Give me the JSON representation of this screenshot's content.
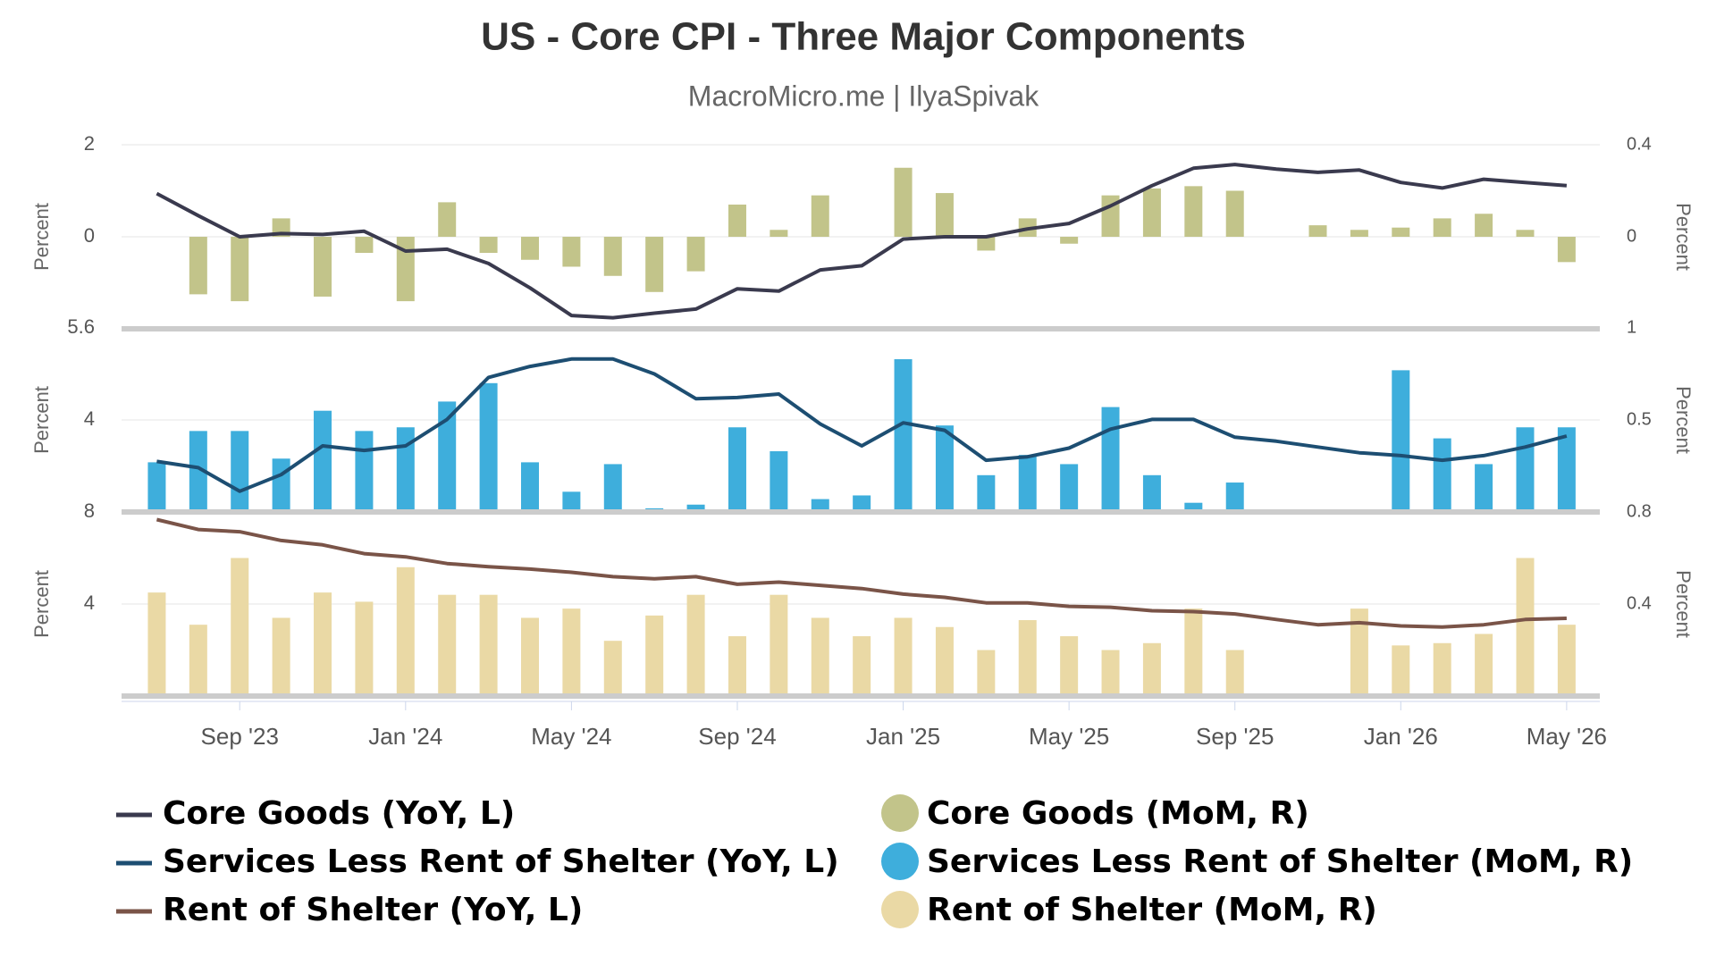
{
  "chart_data": {
    "type": "combo",
    "title": "US - Core CPI - Three Major Components",
    "subtitle": "MacroMicro.me | IlyaSpivak",
    "grid": true,
    "categories": [
      null,
      null,
      "Sep '23",
      null,
      null,
      null,
      "Jan '24",
      null,
      null,
      null,
      "May '24",
      null,
      null,
      null,
      "Sep '24",
      null,
      null,
      null,
      "Jan '25",
      null,
      null,
      null,
      "May '25",
      null,
      null,
      null,
      "Sep '25",
      null,
      null,
      null,
      "Jan '26",
      null,
      null,
      null,
      "May '26"
    ],
    "panels": [
      {
        "ylabel": "Percent",
        "y2label": "Percent",
        "ylim": [
          -2,
          2
        ],
        "yticks": [
          0,
          2
        ],
        "y2lim": [
          -0.4,
          0.4
        ],
        "y2ticks": [
          0,
          0.4
        ],
        "series": [
          {
            "name": "Core Goods (YoY, L)",
            "type": "line",
            "color": "#3a3a4e",
            "values": [
              0.94,
              0.46,
              0,
              0.07,
              0.05,
              0.12,
              -0.31,
              -0.27,
              -0.58,
              -1.11,
              -1.71,
              -1.76,
              -1.66,
              -1.57,
              -1.13,
              -1.18,
              -0.72,
              -0.63,
              -0.05,
              0,
              0,
              0.17,
              0.29,
              0.67,
              1.11,
              1.49,
              1.57,
              1.47,
              1.4,
              1.45,
              1.18,
              1.06,
              1.25,
              1.18,
              1.11
            ]
          },
          {
            "name": "Core Goods (MoM, R)",
            "type": "bar",
            "axis": "y2",
            "color": "#c2c48a",
            "values": [
              null,
              -0.25,
              -0.28,
              0.08,
              -0.26,
              -0.07,
              -0.28,
              0.15,
              -0.07,
              -0.1,
              -0.13,
              -0.17,
              -0.24,
              -0.15,
              0.14,
              0.03,
              0.18,
              0,
              0.3,
              0.19,
              -0.06,
              0.08,
              -0.03,
              0.18,
              0.21,
              0.22,
              0.2,
              null,
              0.05,
              0.03,
              0.04,
              0.08,
              0.1,
              0.03,
              -0.11
            ]
          }
        ]
      },
      {
        "ylabel": "Percent",
        "y2label": "Percent",
        "ylim": [
          2.4,
          5.6
        ],
        "yticks": [
          4,
          5.6
        ],
        "y2lim": [
          0,
          1
        ],
        "y2ticks": [
          0.5,
          1
        ],
        "series": [
          {
            "name": "Services Less Rent of Shelter (YoY, L)",
            "type": "line",
            "color": "#1d4e72",
            "values": [
              3.28,
              3.17,
              2.76,
              3.05,
              3.55,
              3.47,
              3.55,
              4.01,
              4.74,
              4.93,
              5.06,
              5.06,
              4.8,
              4.37,
              4.39,
              4.45,
              3.93,
              3.55,
              3.95,
              3.82,
              3.3,
              3.36,
              3.51,
              3.84,
              4.01,
              4.01,
              3.7,
              3.63,
              3.53,
              3.43,
              3.38,
              3.3,
              3.38,
              3.53,
              3.72
            ]
          },
          {
            "name": "Services Less Rent of Shelter (MoM, R)",
            "type": "bar",
            "axis": "y2",
            "color": "#3eaedc",
            "values": [
              0.27,
              0.44,
              0.44,
              0.29,
              0.55,
              0.44,
              0.46,
              0.6,
              0.7,
              0.27,
              0.11,
              0.26,
              0.02,
              0.04,
              0.46,
              0.33,
              0.07,
              0.09,
              0.83,
              0.47,
              0.2,
              0.31,
              0.26,
              0.57,
              0.2,
              0.05,
              0.16,
              null,
              0,
              0.01,
              0.77,
              0.4,
              0.26,
              0.46,
              0.46
            ]
          }
        ]
      },
      {
        "ylabel": "Percent",
        "y2label": "Percent",
        "ylim": [
          0,
          8
        ],
        "yticks": [
          4,
          8
        ],
        "y2lim": [
          0,
          0.8
        ],
        "y2ticks": [
          0.4,
          0.8
        ],
        "series": [
          {
            "name": "Rent of Shelter (YoY, L)",
            "type": "line",
            "color": "#7a5448",
            "values": [
              7.67,
              7.24,
              7.14,
              6.76,
              6.57,
              6.19,
              6.05,
              5.76,
              5.62,
              5.52,
              5.38,
              5.19,
              5.1,
              5.19,
              4.86,
              4.95,
              4.81,
              4.67,
              4.43,
              4.29,
              4.05,
              4.05,
              3.9,
              3.86,
              3.71,
              3.67,
              3.57,
              3.33,
              3.1,
              3.19,
              3.05,
              3,
              3.1,
              3.33,
              3.38
            ]
          },
          {
            "name": "Rent of Shelter (MoM, R)",
            "type": "bar",
            "axis": "y2",
            "color": "#ead9a5",
            "values": [
              0.45,
              0.31,
              0.6,
              0.34,
              0.45,
              0.41,
              0.56,
              0.44,
              0.44,
              0.34,
              0.38,
              0.24,
              0.35,
              0.44,
              0.26,
              0.44,
              0.34,
              0.26,
              0.34,
              0.3,
              0.2,
              0.33,
              0.26,
              0.2,
              0.23,
              0.38,
              0.2,
              null,
              null,
              0.38,
              0.22,
              0.23,
              0.27,
              0.6,
              0.31
            ]
          }
        ]
      }
    ]
  }
}
